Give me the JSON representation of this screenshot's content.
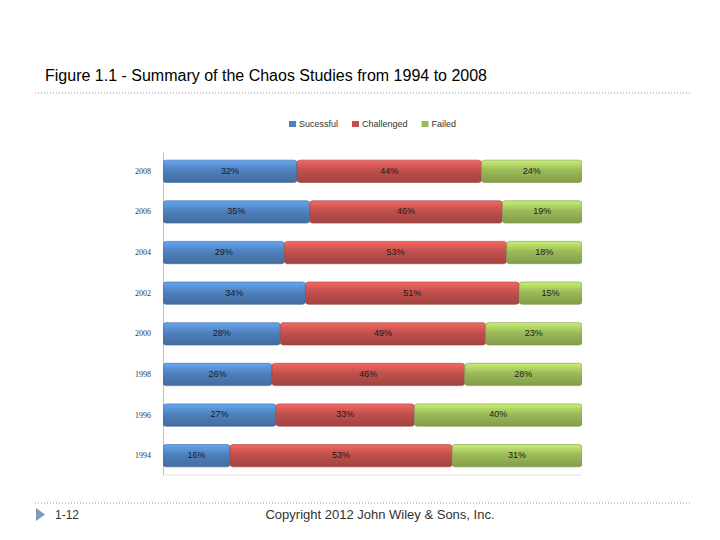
{
  "chart_data": {
    "type": "bar",
    "orientation": "horizontal",
    "stacked": true,
    "title": "Figure 1.1 - Summary of the Chaos Studies from 1994 to 2008",
    "categories": [
      "2008",
      "2006",
      "2004",
      "2002",
      "2000",
      "1998",
      "1996",
      "1994"
    ],
    "series": [
      {
        "name": "Sucessful",
        "color": "#4f81bd",
        "values": [
          32,
          35,
          29,
          34,
          28,
          26,
          27,
          16
        ],
        "value_labels": [
          "32%",
          "35%",
          "29%",
          "34%",
          "28%",
          "26%",
          "27%",
          "16%"
        ]
      },
      {
        "name": "Challenged",
        "color": "#c0504d",
        "values": [
          44,
          46,
          53,
          51,
          49,
          46,
          33,
          53
        ],
        "value_labels": [
          "44%",
          "46%",
          "53%",
          "51%",
          "49%",
          "46%",
          "33%",
          "53%"
        ]
      },
      {
        "name": "Failed",
        "color": "#9bbb59",
        "values": [
          24,
          19,
          18,
          15,
          23,
          28,
          40,
          31
        ],
        "value_labels": [
          "24%",
          "19%",
          "18%",
          "15%",
          "23%",
          "28%",
          "40%",
          "31%"
        ]
      }
    ],
    "xlim": [
      0,
      100
    ],
    "legend": "top",
    "data_labels": true,
    "tick_labels": "y"
  },
  "footer": {
    "page": "1-12",
    "copyright": "Copyright 2012 John Wiley & Sons, Inc."
  }
}
